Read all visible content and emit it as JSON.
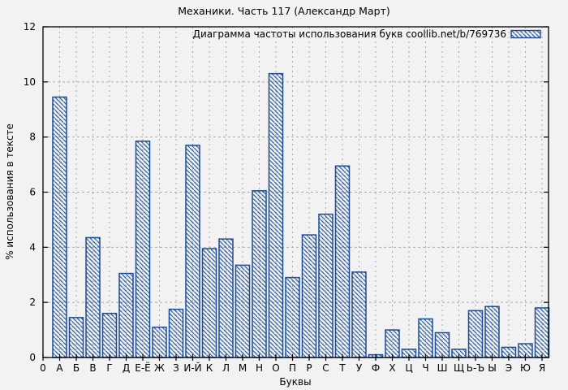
{
  "chart_data": {
    "type": "bar",
    "title": "Механики. Часть 117 (Александр Март)",
    "legend": "Диаграмма частоты использования букв coollib.net/b/769736",
    "xlabel": "Буквы",
    "ylabel": "% использования в тексте",
    "origin_label": "0",
    "ylim": [
      0,
      12
    ],
    "ytick_step": 2,
    "grid": true,
    "legend_position": "top-right",
    "hatch": "diagonal-backslash",
    "categories": [
      "А",
      "Б",
      "В",
      "Г",
      "Д",
      "Е-Ё",
      "Ж",
      "З",
      "И-Й",
      "К",
      "Л",
      "М",
      "Н",
      "О",
      "П",
      "Р",
      "С",
      "Т",
      "У",
      "Ф",
      "Х",
      "Ц",
      "Ч",
      "Ш",
      "Щ",
      "Ь-Ъ",
      "Ы",
      "Э",
      "Ю",
      "Я"
    ],
    "values": [
      9.45,
      1.45,
      4.35,
      1.6,
      3.05,
      7.85,
      1.1,
      1.75,
      7.7,
      3.95,
      4.3,
      3.35,
      6.05,
      10.3,
      2.9,
      4.45,
      5.2,
      6.95,
      3.1,
      0.1,
      1.0,
      0.3,
      1.4,
      0.9,
      0.3,
      1.7,
      1.85,
      0.37,
      0.5,
      1.8
    ],
    "colors": {
      "bar": "#1a4c9a",
      "grid": "#ababab",
      "axis": "#000000",
      "background": "#f2f2f2",
      "text": "#000000"
    }
  }
}
